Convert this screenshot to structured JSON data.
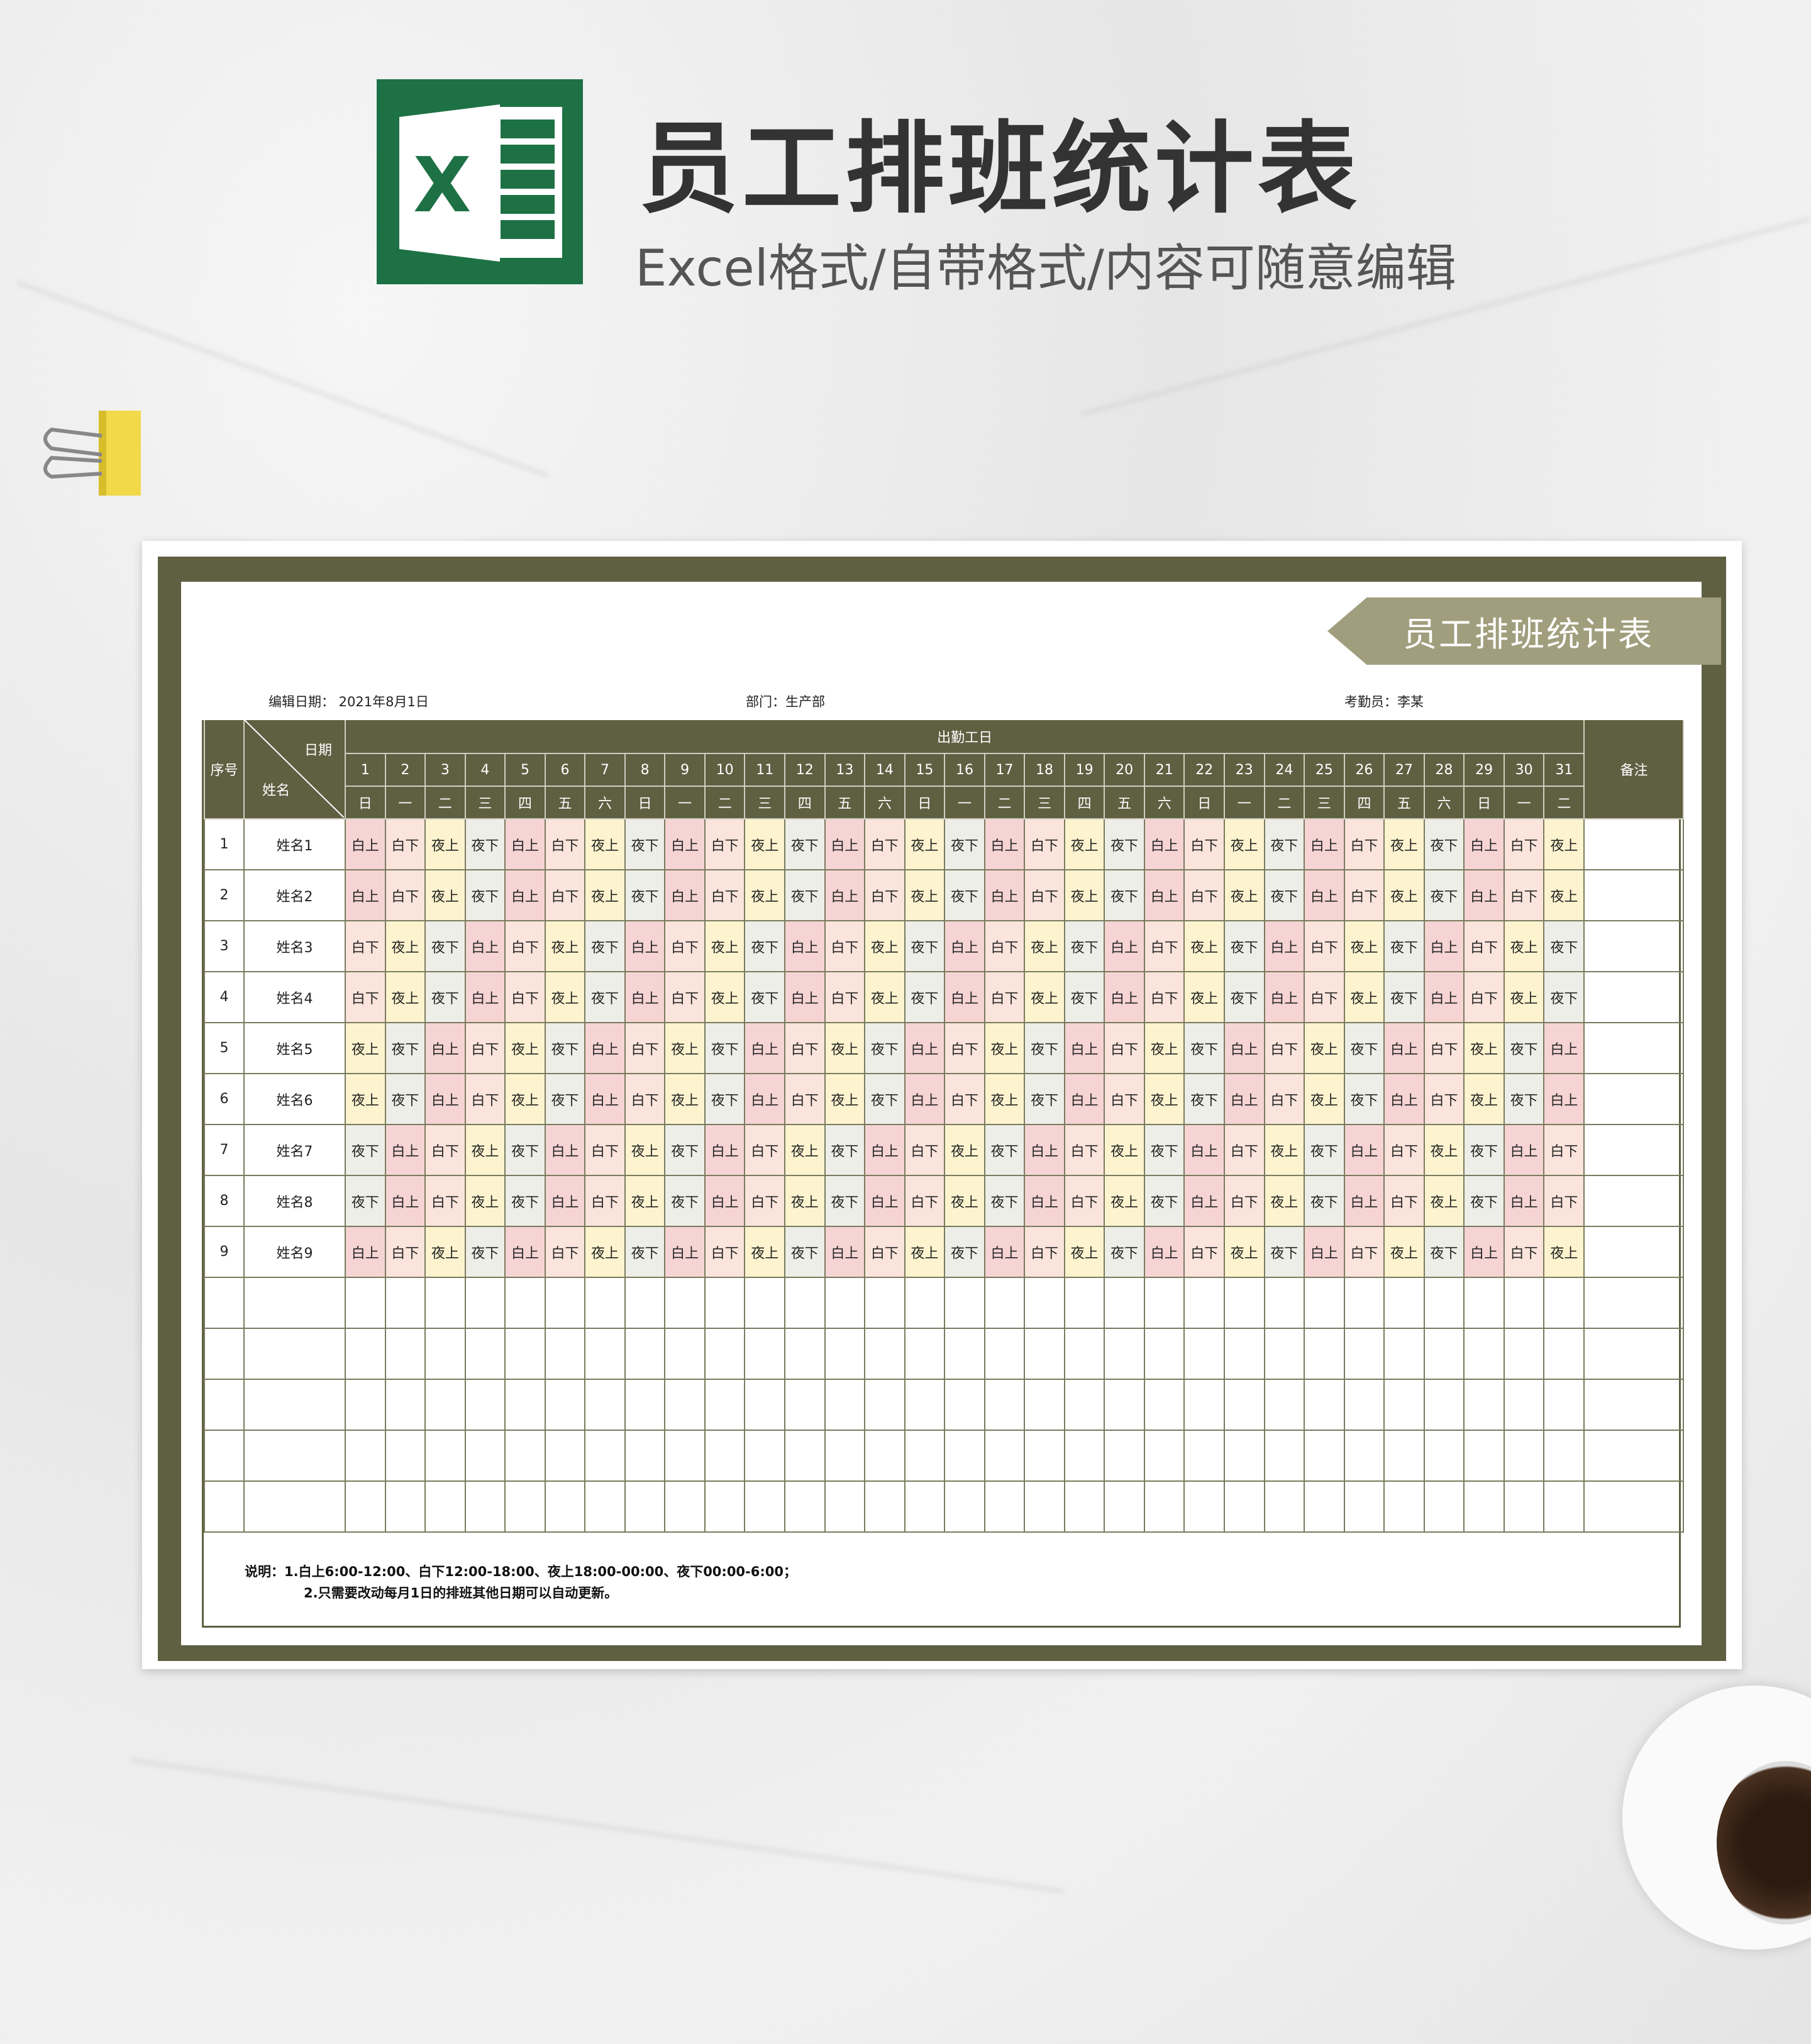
{
  "banner": {
    "title": "员工排班统计表",
    "subtitle": "Excel格式/自带格式/内容可随意编辑",
    "logo_letter": "X"
  },
  "sheet": {
    "ribbon_title": "员工排班统计表",
    "edit_date": "编辑日期： 2021年8月1日",
    "department": "部门：生产部",
    "attendant": "考勤员：李某",
    "headers": {
      "seq": "序号",
      "date": "日期",
      "name": "姓名",
      "workdays": "出勤工日",
      "remark": "备注"
    },
    "days": [
      "1",
      "2",
      "3",
      "4",
      "5",
      "6",
      "7",
      "8",
      "9",
      "10",
      "11",
      "12",
      "13",
      "14",
      "15",
      "16",
      "17",
      "18",
      "19",
      "20",
      "21",
      "22",
      "23",
      "24",
      "25",
      "26",
      "27",
      "28",
      "29",
      "30",
      "31"
    ],
    "weekdays": [
      "日",
      "一",
      "二",
      "三",
      "四",
      "五",
      "六",
      "日",
      "一",
      "二",
      "三",
      "四",
      "五",
      "六",
      "日",
      "一",
      "二",
      "三",
      "四",
      "五",
      "六",
      "日",
      "一",
      "二",
      "三",
      "四",
      "五",
      "六",
      "日",
      "一",
      "二"
    ],
    "shift_colors": {
      "白上": "#f6d4d4",
      "白下": "#fae4dc",
      "夜上": "#fdf4cf",
      "夜下": "#eeeee8"
    },
    "rows": [
      {
        "seq": "1",
        "name": "姓名1",
        "shifts": [
          "白上",
          "白下",
          "夜上",
          "夜下",
          "白上",
          "白下",
          "夜上",
          "夜下",
          "白上",
          "白下",
          "夜上",
          "夜下",
          "白上",
          "白下",
          "夜上",
          "夜下",
          "白上",
          "白下",
          "夜上",
          "夜下",
          "白上",
          "白下",
          "夜上",
          "夜下",
          "白上",
          "白下",
          "夜上",
          "夜下",
          "白上",
          "白下",
          "夜上"
        ]
      },
      {
        "seq": "2",
        "name": "姓名2",
        "shifts": [
          "白上",
          "白下",
          "夜上",
          "夜下",
          "白上",
          "白下",
          "夜上",
          "夜下",
          "白上",
          "白下",
          "夜上",
          "夜下",
          "白上",
          "白下",
          "夜上",
          "夜下",
          "白上",
          "白下",
          "夜上",
          "夜下",
          "白上",
          "白下",
          "夜上",
          "夜下",
          "白上",
          "白下",
          "夜上",
          "夜下",
          "白上",
          "白下",
          "夜上"
        ]
      },
      {
        "seq": "3",
        "name": "姓名3",
        "shifts": [
          "白下",
          "夜上",
          "夜下",
          "白上",
          "白下",
          "夜上",
          "夜下",
          "白上",
          "白下",
          "夜上",
          "夜下",
          "白上",
          "白下",
          "夜上",
          "夜下",
          "白上",
          "白下",
          "夜上",
          "夜下",
          "白上",
          "白下",
          "夜上",
          "夜下",
          "白上",
          "白下",
          "夜上",
          "夜下",
          "白上",
          "白下",
          "夜上",
          "夜下"
        ]
      },
      {
        "seq": "4",
        "name": "姓名4",
        "shifts": [
          "白下",
          "夜上",
          "夜下",
          "白上",
          "白下",
          "夜上",
          "夜下",
          "白上",
          "白下",
          "夜上",
          "夜下",
          "白上",
          "白下",
          "夜上",
          "夜下",
          "白上",
          "白下",
          "夜上",
          "夜下",
          "白上",
          "白下",
          "夜上",
          "夜下",
          "白上",
          "白下",
          "夜上",
          "夜下",
          "白上",
          "白下",
          "夜上",
          "夜下"
        ]
      },
      {
        "seq": "5",
        "name": "姓名5",
        "shifts": [
          "夜上",
          "夜下",
          "白上",
          "白下",
          "夜上",
          "夜下",
          "白上",
          "白下",
          "夜上",
          "夜下",
          "白上",
          "白下",
          "夜上",
          "夜下",
          "白上",
          "白下",
          "夜上",
          "夜下",
          "白上",
          "白下",
          "夜上",
          "夜下",
          "白上",
          "白下",
          "夜上",
          "夜下",
          "白上",
          "白下",
          "夜上",
          "夜下",
          "白上"
        ]
      },
      {
        "seq": "6",
        "name": "姓名6",
        "shifts": [
          "夜上",
          "夜下",
          "白上",
          "白下",
          "夜上",
          "夜下",
          "白上",
          "白下",
          "夜上",
          "夜下",
          "白上",
          "白下",
          "夜上",
          "夜下",
          "白上",
          "白下",
          "夜上",
          "夜下",
          "白上",
          "白下",
          "夜上",
          "夜下",
          "白上",
          "白下",
          "夜上",
          "夜下",
          "白上",
          "白下",
          "夜上",
          "夜下",
          "白上"
        ]
      },
      {
        "seq": "7",
        "name": "姓名7",
        "shifts": [
          "夜下",
          "白上",
          "白下",
          "夜上",
          "夜下",
          "白上",
          "白下",
          "夜上",
          "夜下",
          "白上",
          "白下",
          "夜上",
          "夜下",
          "白上",
          "白下",
          "夜上",
          "夜下",
          "白上",
          "白下",
          "夜上",
          "夜下",
          "白上",
          "白下",
          "夜上",
          "夜下",
          "白上",
          "白下",
          "夜上",
          "夜下",
          "白上",
          "白下"
        ]
      },
      {
        "seq": "8",
        "name": "姓名8",
        "shifts": [
          "夜下",
          "白上",
          "白下",
          "夜上",
          "夜下",
          "白上",
          "白下",
          "夜上",
          "夜下",
          "白上",
          "白下",
          "夜上",
          "夜下",
          "白上",
          "白下",
          "夜上",
          "夜下",
          "白上",
          "白下",
          "夜上",
          "夜下",
          "白上",
          "白下",
          "夜上",
          "夜下",
          "白上",
          "白下",
          "夜上",
          "夜下",
          "白上",
          "白下"
        ]
      },
      {
        "seq": "9",
        "name": "姓名9",
        "shifts": [
          "白上",
          "白下",
          "夜上",
          "夜下",
          "白上",
          "白下",
          "夜上",
          "夜下",
          "白上",
          "白下",
          "夜上",
          "夜下",
          "白上",
          "白下",
          "夜上",
          "夜下",
          "白上",
          "白下",
          "夜上",
          "夜下",
          "白上",
          "白下",
          "夜上",
          "夜下",
          "白上",
          "白下",
          "夜上",
          "夜下",
          "白上",
          "白下",
          "夜上"
        ]
      },
      {
        "seq": "",
        "name": "",
        "shifts": []
      },
      {
        "seq": "",
        "name": "",
        "shifts": []
      },
      {
        "seq": "",
        "name": "",
        "shifts": []
      },
      {
        "seq": "",
        "name": "",
        "shifts": []
      },
      {
        "seq": "",
        "name": "",
        "shifts": []
      }
    ],
    "notes": {
      "line1": "说明：1.白上6:00-12:00、白下12:00-18:00、夜上18:00-00:00、夜下00:00-6:00；",
      "line2": "2.只需要改动每月1日的排班其他日期可以自动更新。"
    }
  }
}
